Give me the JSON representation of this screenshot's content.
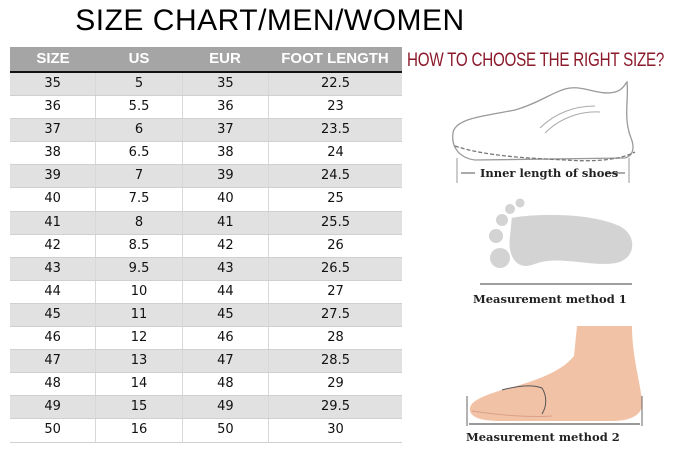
{
  "title": "SIZE CHART/MEN/WOMEN",
  "table": {
    "headers": [
      "SIZE",
      "US",
      "EUR",
      "FOOT LENGTH"
    ],
    "rows": [
      [
        "35",
        "5",
        "35",
        "22.5"
      ],
      [
        "36",
        "5.5",
        "36",
        "23"
      ],
      [
        "37",
        "6",
        "37",
        "23.5"
      ],
      [
        "38",
        "6.5",
        "38",
        "24"
      ],
      [
        "39",
        "7",
        "39",
        "24.5"
      ],
      [
        "40",
        "7.5",
        "40",
        "25"
      ],
      [
        "41",
        "8",
        "41",
        "25.5"
      ],
      [
        "42",
        "8.5",
        "42",
        "26"
      ],
      [
        "43",
        "9.5",
        "43",
        "26.5"
      ],
      [
        "44",
        "10",
        "44",
        "27"
      ],
      [
        "45",
        "11",
        "45",
        "27.5"
      ],
      [
        "46",
        "12",
        "46",
        "28"
      ],
      [
        "47",
        "13",
        "47",
        "28.5"
      ],
      [
        "48",
        "14",
        "48",
        "29"
      ],
      [
        "49",
        "15",
        "49",
        "29.5"
      ],
      [
        "50",
        "16",
        "50",
        "30"
      ]
    ]
  },
  "guide": {
    "heading": "HOW TO CHOOSE THE RIGHT SIZE?",
    "shoe_caption": "Inner length of shoes",
    "method1_caption": "Measurement method 1",
    "method2_caption": "Measurement method 2"
  },
  "colors": {
    "header_bg": "#a5a5a5",
    "stripe": "#e1e1e1",
    "heading": "#8b1a2b",
    "skin": "#f2c2a6"
  }
}
